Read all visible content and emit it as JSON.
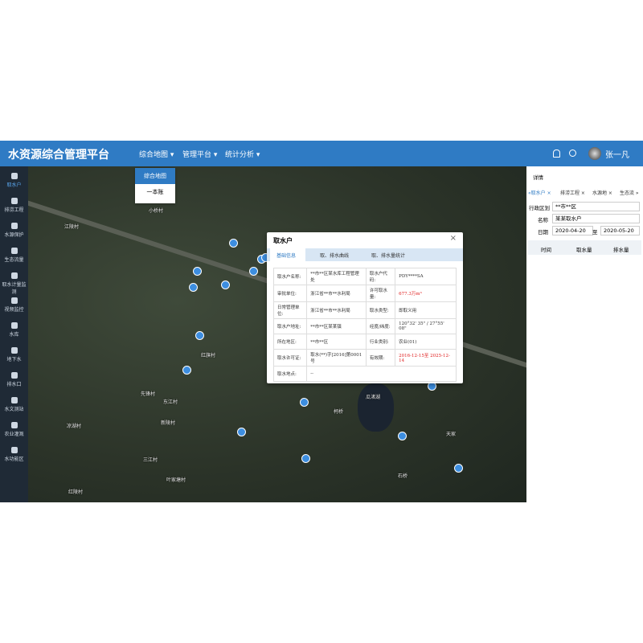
{
  "header": {
    "title": "水资源综合管理平台",
    "menus": [
      "综合地图",
      "管理平台",
      "统计分析"
    ],
    "dropdown": [
      "综合地图",
      "一本账"
    ],
    "user": "张一凡"
  },
  "sidebar": [
    "取水户",
    "排涝工程",
    "水源保护",
    "生态流量",
    "取水计量监测",
    "视频监控",
    "水库",
    "地下水",
    "排水口",
    "水文测站",
    "农业灌溉",
    "水功能区"
  ],
  "map": {
    "labels": [
      "小桥村",
      "江陵村",
      "红旗村",
      "先锋村",
      "东江村",
      "新陵村",
      "凉湖村",
      "三江村",
      "叶家塘村",
      "红陵村",
      "瓜渚湖",
      "柯桥",
      "天家",
      "石桥"
    ]
  },
  "popup": {
    "title": "取水户",
    "tabs": [
      "基础信息",
      "取、排水曲线",
      "取、排水量统计"
    ],
    "rows": [
      [
        "取水户名称:",
        "**市**区某水库工程管理处",
        "取水户代码:",
        "PDY****SA"
      ],
      [
        "审批单位:",
        "浙江省**市**水利局",
        "许可取水量:",
        "677.3万m³"
      ],
      [
        "日常管理单位:",
        "浙江省**市**水利局",
        "取水类型:",
        "即取义用"
      ],
      [
        "取水户地址:",
        "**市**区某某镇",
        "经度/纬度:",
        "120°32' 35\" / 27°55' 08\""
      ],
      [
        "所在地区:",
        "**市**区",
        "行业类别:",
        "农业(01)"
      ],
      [
        "取水许可证:",
        "取水(**)字[2016]第0001号",
        "有效期:",
        "2016-12-15至 2025-12-14"
      ],
      [
        "取水地点:",
        "--"
      ]
    ]
  },
  "panel": {
    "title": "详情",
    "tabs": [
      "«取水户",
      "排涝工程",
      "水源地",
      "生态流 »"
    ],
    "form": {
      "region_label": "行政区划",
      "region": "**市**区",
      "name_label": "名称",
      "name": "某某取水户",
      "date_label": "日期",
      "date_start": "2020-04-20",
      "date_sep": "至",
      "date_end": "2020-05-20"
    },
    "columns": [
      "时间",
      "取水量",
      "排水量"
    ]
  }
}
